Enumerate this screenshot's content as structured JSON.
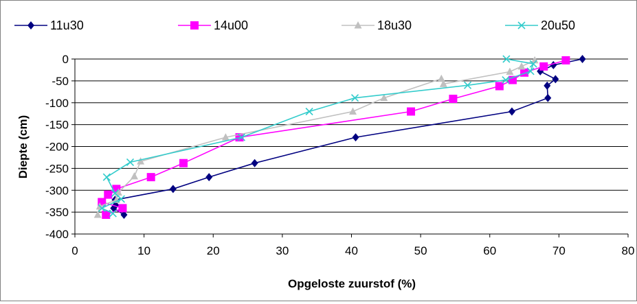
{
  "chart_data": {
    "type": "line",
    "title": "",
    "xlabel": "Opgeloste zuurstof (%)",
    "ylabel": "Diepte (cm)",
    "xlim": [
      0,
      80
    ],
    "ylim": [
      -400,
      0
    ],
    "xticks": [
      0,
      10,
      20,
      30,
      40,
      50,
      60,
      70,
      80
    ],
    "yticks": [
      0,
      -50,
      -100,
      -150,
      -200,
      -250,
      -300,
      -350,
      -400
    ],
    "grid": "horizontal",
    "legend_position": "top",
    "series": [
      {
        "name": "11u30",
        "color": "#000080",
        "marker": "diamond",
        "points": [
          [
            73.4,
            0
          ],
          [
            69.2,
            -14
          ],
          [
            67.3,
            -28
          ],
          [
            69.5,
            -46
          ],
          [
            68.3,
            -61
          ],
          [
            68.4,
            -89
          ],
          [
            63.2,
            -120
          ],
          [
            40.6,
            -179
          ],
          [
            26.0,
            -238
          ],
          [
            19.4,
            -270
          ],
          [
            14.2,
            -297
          ],
          [
            5.8,
            -322
          ],
          [
            5.9,
            -334
          ],
          [
            5.6,
            -341
          ],
          [
            7.1,
            -356
          ]
        ]
      },
      {
        "name": "14u00",
        "color": "#FF00FF",
        "marker": "square",
        "points": [
          [
            71.0,
            -3
          ],
          [
            67.8,
            -17
          ],
          [
            65.0,
            -31
          ],
          [
            63.3,
            -48
          ],
          [
            61.4,
            -62
          ],
          [
            54.7,
            -91
          ],
          [
            48.6,
            -120
          ],
          [
            23.8,
            -179
          ],
          [
            15.7,
            -238
          ],
          [
            11.0,
            -270
          ],
          [
            6.0,
            -297
          ],
          [
            4.8,
            -310
          ],
          [
            3.9,
            -327
          ],
          [
            6.9,
            -341
          ],
          [
            4.5,
            -356
          ]
        ]
      },
      {
        "name": "18u30",
        "color": "#C0C0C0",
        "marker": "triangle",
        "points": [
          [
            66.5,
            -3
          ],
          [
            64.6,
            -17
          ],
          [
            62.9,
            -29
          ],
          [
            53.3,
            -57
          ],
          [
            53.0,
            -45
          ],
          [
            44.7,
            -89
          ],
          [
            40.2,
            -120
          ],
          [
            21.8,
            -179
          ],
          [
            9.5,
            -234
          ],
          [
            8.6,
            -268
          ],
          [
            6.3,
            -305
          ],
          [
            6.0,
            -322
          ],
          [
            3.6,
            -337
          ],
          [
            3.3,
            -356
          ]
        ]
      },
      {
        "name": "20u50",
        "color": "#33CCCC",
        "marker": "x",
        "points": [
          [
            62.4,
            0
          ],
          [
            66.3,
            -11
          ],
          [
            65.9,
            -28
          ],
          [
            62.3,
            -48
          ],
          [
            56.8,
            -60
          ],
          [
            40.5,
            -89
          ],
          [
            33.9,
            -120
          ],
          [
            24.1,
            -179
          ],
          [
            8.0,
            -236
          ],
          [
            4.6,
            -270
          ],
          [
            5.8,
            -307
          ],
          [
            6.7,
            -320
          ],
          [
            3.9,
            -341
          ],
          [
            5.5,
            -353
          ]
        ]
      }
    ]
  }
}
